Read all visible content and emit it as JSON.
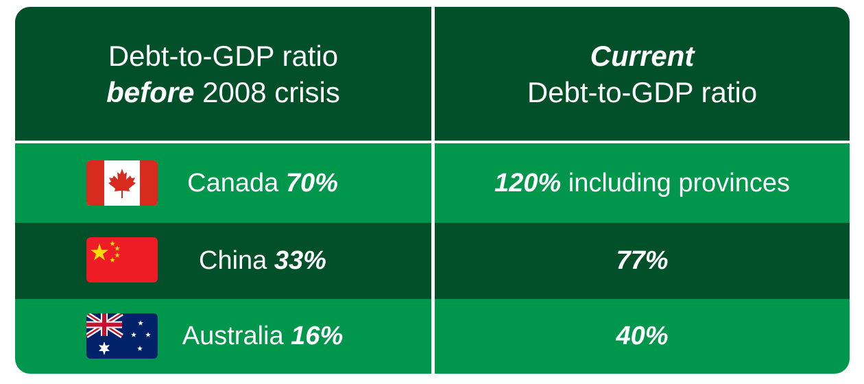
{
  "header": {
    "left": {
      "line1": "Debt-to-GDP ratio",
      "line2_em": "before",
      "line2_rest": "2008 crisis"
    },
    "right": {
      "line1_em": "Current",
      "line2": "Debt-to-GDP ratio"
    }
  },
  "rows": [
    {
      "country": "Canada",
      "before": "70%",
      "current_em": "120%",
      "current_rest": "including provinces",
      "flag": "canada-flag"
    },
    {
      "country": "China",
      "before": "33%",
      "current_em": "77%",
      "current_rest": "",
      "flag": "china-flag"
    },
    {
      "country": "Australia",
      "before": "16%",
      "current_em": "40%",
      "current_rest": "",
      "flag": "australia-flag"
    }
  ],
  "colors": {
    "dark_green": "#02502a",
    "bright_green": "#00964b",
    "divider": "#ffffff"
  }
}
